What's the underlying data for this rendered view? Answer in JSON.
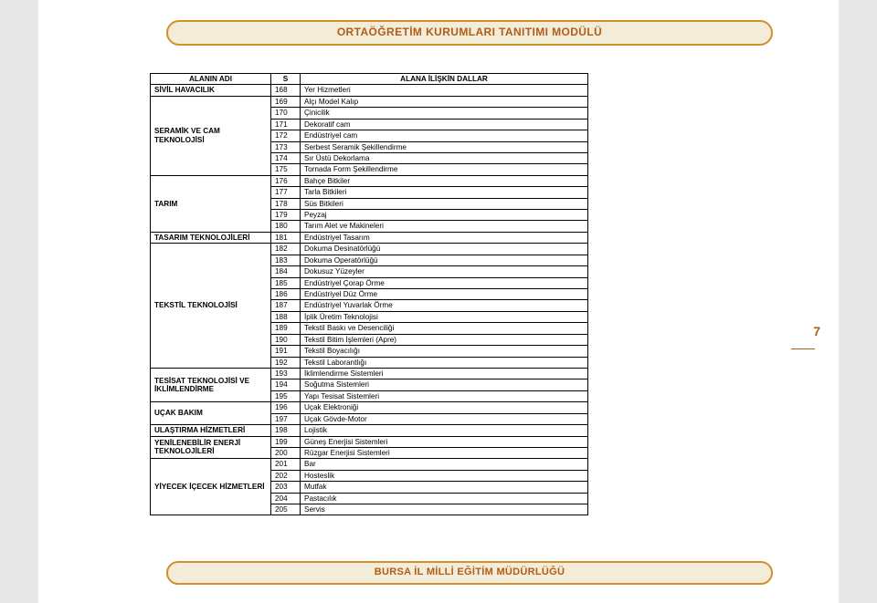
{
  "header": {
    "title": "ORTAÖĞRETİM KURUMLARI TANITIMI MODÜLÜ"
  },
  "footer": {
    "title": "BURSA İL MİLLİ EĞİTİM MÜDÜRLÜĞÜ"
  },
  "side_page_number": "7",
  "columns": {
    "alan": "ALANIN ADI",
    "s": "S",
    "dallar": "ALANA İLİŞKİN DALLAR"
  },
  "groups": [
    {
      "alan": "SİVİL HAVACILIK",
      "rows": [
        {
          "s": 168,
          "d": "Yer Hizmetleri"
        }
      ]
    },
    {
      "alan": "SERAMİK VE CAM TEKNOLOJİSİ",
      "rows": [
        {
          "s": 169,
          "d": "Alçı Model Kalıp"
        },
        {
          "s": 170,
          "d": "Çinicilik"
        },
        {
          "s": 171,
          "d": "Dekoratif cam"
        },
        {
          "s": 172,
          "d": "Endüstriyel cam"
        },
        {
          "s": 173,
          "d": "Serbest Seramik Şekillendirme"
        },
        {
          "s": 174,
          "d": "Sır Üstü Dekorlama"
        },
        {
          "s": 175,
          "d": "Tornada Form Şekillendirme"
        }
      ]
    },
    {
      "alan": "TARIM",
      "rows": [
        {
          "s": 176,
          "d": "Bahçe Bitkiler"
        },
        {
          "s": 177,
          "d": "Tarla Bitkileri"
        },
        {
          "s": 178,
          "d": "Süs Bitkileri"
        },
        {
          "s": 179,
          "d": "Peyzaj"
        },
        {
          "s": 180,
          "d": "Tarım Alet ve Makineleri"
        }
      ]
    },
    {
      "alan": "TASARIM TEKNOLOJİLERİ",
      "rows": [
        {
          "s": 181,
          "d": "Endüstriyel Tasarım"
        }
      ]
    },
    {
      "alan": "TEKSTİL TEKNOLOJİSİ",
      "rows": [
        {
          "s": 182,
          "d": "Dokuma Desinatörlüğü"
        },
        {
          "s": 183,
          "d": "Dokuma Operatörlüğü"
        },
        {
          "s": 184,
          "d": "Dokusuz Yüzeyler"
        },
        {
          "s": 185,
          "d": "Endüstriyel Çorap Örme"
        },
        {
          "s": 186,
          "d": "Endüstriyel Düz Örme"
        },
        {
          "s": 187,
          "d": "Endüstriyel Yuvarlak Örme"
        },
        {
          "s": 188,
          "d": "İplik Üretim Teknolojisi"
        },
        {
          "s": 189,
          "d": "Tekstil Baskı ve Desenciliği"
        },
        {
          "s": 190,
          "d": "Tekstil Bitim İşlemleri (Apre)"
        },
        {
          "s": 191,
          "d": "Tekstil Boyacılığı"
        },
        {
          "s": 192,
          "d": "Tekstil Laborantlığı"
        }
      ]
    },
    {
      "alan": "TESİSAT TEKNOLOJİSİ VE İKLİMLENDİRME",
      "rows": [
        {
          "s": 193,
          "d": "İklimlendirme Sistemleri"
        },
        {
          "s": 194,
          "d": "Soğutma Sistemleri"
        },
        {
          "s": 195,
          "d": "Yapı Tesisat Sistemleri"
        }
      ]
    },
    {
      "alan": "UÇAK BAKIM",
      "rows": [
        {
          "s": 196,
          "d": "Uçak Elektroniği"
        },
        {
          "s": 197,
          "d": "Uçak Gövde-Motor"
        }
      ]
    },
    {
      "alan": "ULAŞTIRMA HİZMETLERİ",
      "rows": [
        {
          "s": 198,
          "d": "Lojistik"
        }
      ]
    },
    {
      "alan": "YENİLENEBİLİR ENERJİ TEKNOLOJİLERİ",
      "rows": [
        {
          "s": 199,
          "d": "Güneş Enerjisi Sistemleri"
        },
        {
          "s": 200,
          "d": "Rüzgar Enerjisi Sistemleri"
        }
      ]
    },
    {
      "alan": "YİYECEK İÇECEK HİZMETLERİ",
      "rows": [
        {
          "s": 201,
          "d": "Bar"
        },
        {
          "s": 202,
          "d": "Hosteslik"
        },
        {
          "s": 203,
          "d": "Mutfak"
        },
        {
          "s": 204,
          "d": "Pastacılık"
        },
        {
          "s": 205,
          "d": "Servis"
        }
      ]
    }
  ]
}
